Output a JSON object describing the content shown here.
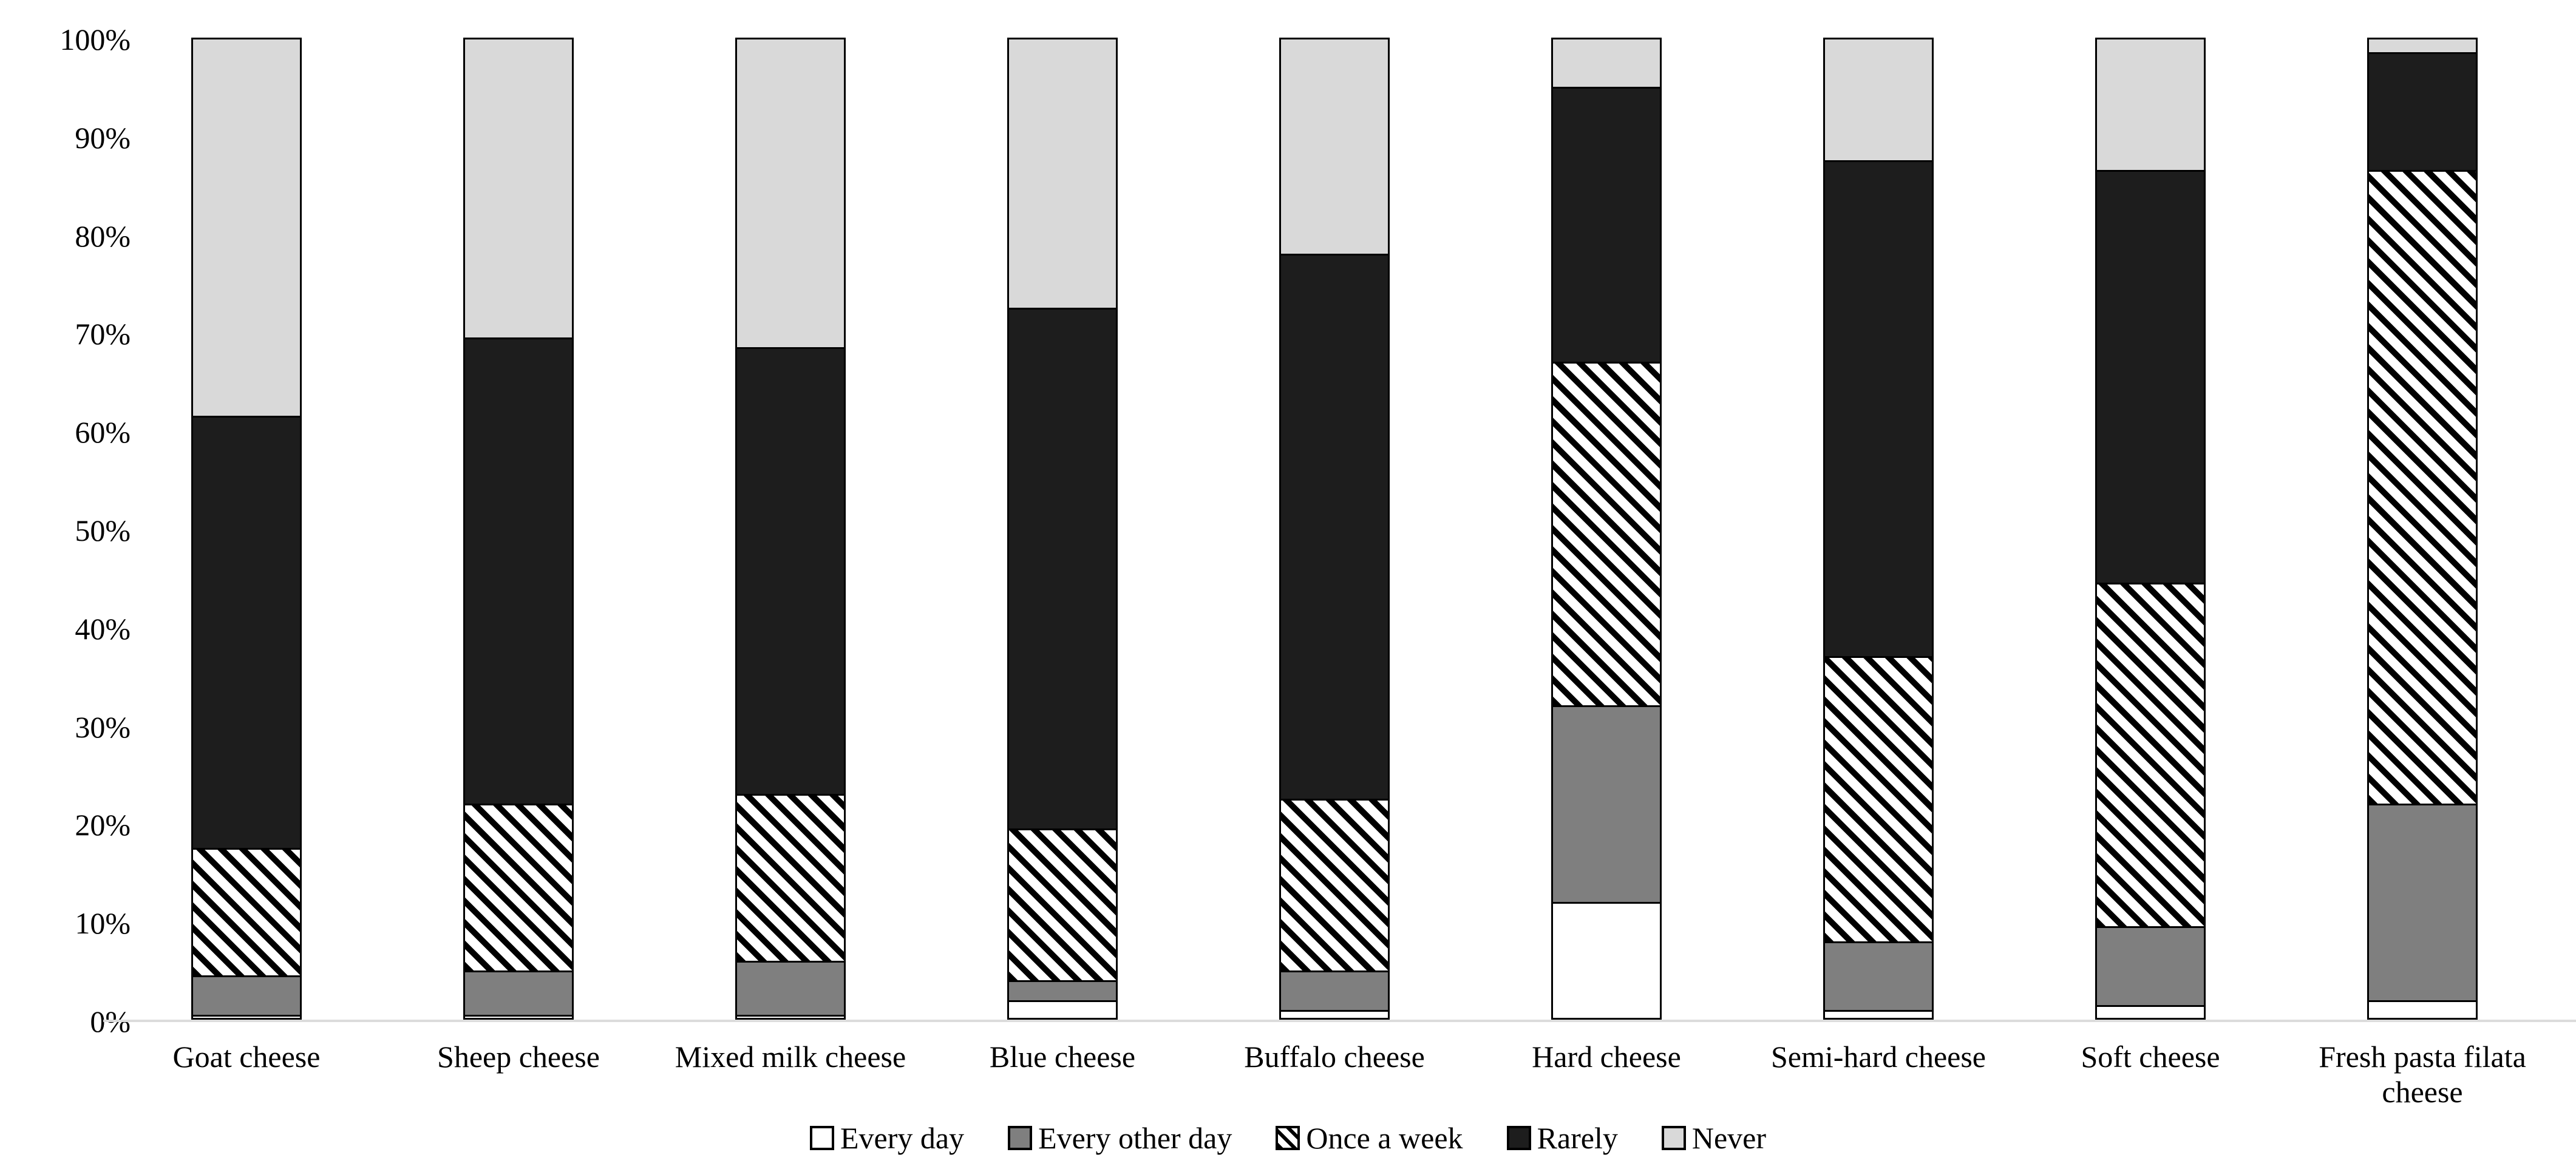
{
  "chart_data": {
    "type": "bar",
    "variant": "stacked-100-percent",
    "categories": [
      "Goat cheese",
      "Sheep cheese",
      "Mixed milk cheese",
      "Blue cheese",
      "Buffalo cheese",
      "Hard cheese",
      "Semi-hard cheese",
      "Soft cheese",
      "Fresh pasta filata cheese"
    ],
    "series": [
      {
        "name": "Every day",
        "fill": "#ffffff",
        "pattern": "solid",
        "values": [
          0.5,
          0.5,
          0.5,
          2,
          1,
          12,
          1,
          1.5,
          2
        ]
      },
      {
        "name": "Every other day",
        "fill": "#7f7f7f",
        "pattern": "solid",
        "values": [
          4,
          4.5,
          5.5,
          2,
          4,
          20,
          7,
          8,
          20
        ]
      },
      {
        "name": "Once a week",
        "fill": "#ffffff",
        "pattern": "diagonal-hatch",
        "values": [
          13,
          17,
          17,
          15.5,
          17.5,
          35,
          29,
          35,
          64.5
        ]
      },
      {
        "name": "Rarely",
        "fill": "#1d1d1d",
        "pattern": "solid",
        "values": [
          44,
          47.5,
          45.5,
          53,
          55.5,
          28,
          50.5,
          42,
          12
        ]
      },
      {
        "name": "Never",
        "fill": "#d9d9d9",
        "pattern": "solid",
        "values": [
          38.5,
          30.5,
          31.5,
          27.5,
          22,
          5,
          12.5,
          13.5,
          1.5
        ]
      }
    ],
    "title": "",
    "xlabel": "",
    "ylabel": "",
    "ylim": [
      0,
      100
    ],
    "yticks": [
      "0%",
      "10%",
      "20%",
      "30%",
      "40%",
      "50%",
      "60%",
      "70%",
      "80%",
      "90%",
      "100%"
    ],
    "grid": false,
    "legend_position": "bottom",
    "legend_labels": [
      "Every day",
      "Every other day",
      "Once a week",
      "Rarely",
      "Never"
    ]
  },
  "colors": {
    "every_day": "#ffffff",
    "every_other_day": "#7f7f7f",
    "rarely": "#1d1d1d",
    "never": "#d9d9d9",
    "segment_border": "#000000",
    "baseline": "#dcdcdc",
    "background": "#ffffff"
  },
  "layout_values": {
    "axis_max_label": "100%",
    "axis_min_label": "0%"
  }
}
